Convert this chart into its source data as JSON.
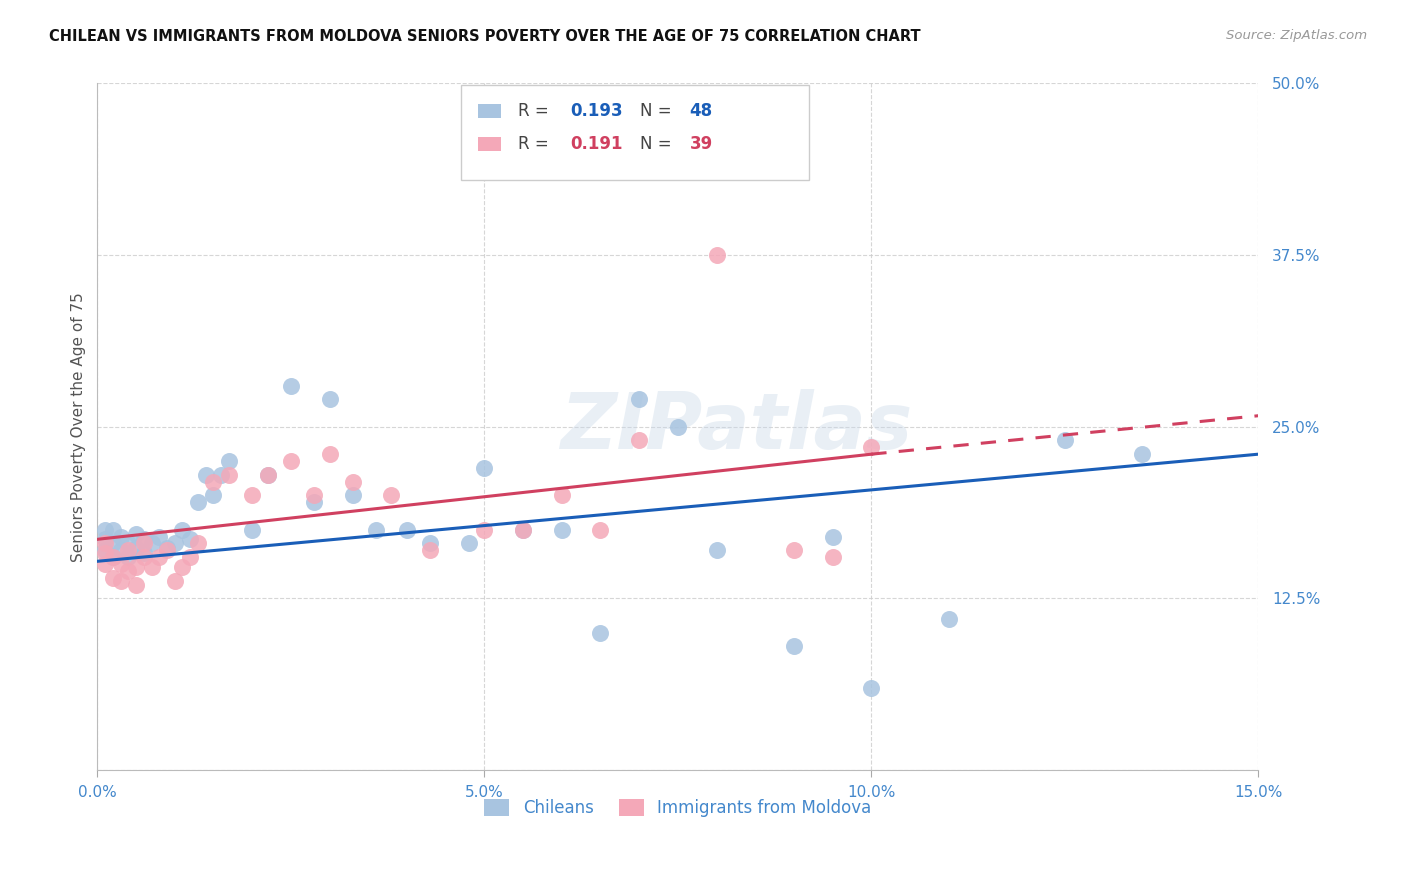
{
  "title": "CHILEAN VS IMMIGRANTS FROM MOLDOVA SENIORS POVERTY OVER THE AGE OF 75 CORRELATION CHART",
  "source": "Source: ZipAtlas.com",
  "ylabel": "Seniors Poverty Over the Age of 75",
  "xlim": [
    0.0,
    0.15
  ],
  "ylim": [
    0.0,
    0.5
  ],
  "xticks": [
    0.0,
    0.05,
    0.1,
    0.15
  ],
  "xticklabels": [
    "0.0%",
    "5.0%",
    "10.0%",
    "15.0%"
  ],
  "yticks": [
    0.0,
    0.125,
    0.25,
    0.375,
    0.5
  ],
  "yticklabels": [
    "",
    "12.5%",
    "25.0%",
    "37.5%",
    "50.0%"
  ],
  "chilean_R": "0.193",
  "chilean_N": "48",
  "moldova_R": "0.191",
  "moldova_N": "39",
  "chilean_color": "#a8c4e0",
  "moldova_color": "#f4a8b8",
  "trendline_chilean_color": "#1a5eb8",
  "trendline_moldova_color": "#d04060",
  "chilean_x": [
    0.001,
    0.001,
    0.001,
    0.002,
    0.002,
    0.002,
    0.003,
    0.003,
    0.004,
    0.004,
    0.005,
    0.005,
    0.006,
    0.006,
    0.007,
    0.008,
    0.009,
    0.01,
    0.011,
    0.012,
    0.013,
    0.014,
    0.015,
    0.016,
    0.017,
    0.02,
    0.022,
    0.025,
    0.028,
    0.03,
    0.033,
    0.036,
    0.04,
    0.043,
    0.048,
    0.05,
    0.055,
    0.06,
    0.065,
    0.07,
    0.075,
    0.08,
    0.09,
    0.095,
    0.1,
    0.11,
    0.125,
    0.135
  ],
  "chilean_y": [
    0.16,
    0.168,
    0.175,
    0.155,
    0.165,
    0.175,
    0.16,
    0.17,
    0.155,
    0.165,
    0.162,
    0.172,
    0.158,
    0.168,
    0.165,
    0.17,
    0.162,
    0.165,
    0.175,
    0.168,
    0.195,
    0.215,
    0.2,
    0.215,
    0.225,
    0.175,
    0.215,
    0.28,
    0.195,
    0.27,
    0.2,
    0.175,
    0.175,
    0.165,
    0.165,
    0.22,
    0.175,
    0.175,
    0.1,
    0.27,
    0.25,
    0.16,
    0.09,
    0.17,
    0.06,
    0.11,
    0.24,
    0.23
  ],
  "moldova_x": [
    0.001,
    0.001,
    0.001,
    0.002,
    0.002,
    0.003,
    0.003,
    0.004,
    0.004,
    0.005,
    0.005,
    0.006,
    0.006,
    0.007,
    0.008,
    0.009,
    0.01,
    0.011,
    0.012,
    0.013,
    0.015,
    0.017,
    0.02,
    0.022,
    0.025,
    0.028,
    0.03,
    0.033,
    0.038,
    0.043,
    0.05,
    0.055,
    0.06,
    0.065,
    0.07,
    0.08,
    0.09,
    0.095,
    0.1
  ],
  "moldova_y": [
    0.15,
    0.158,
    0.165,
    0.14,
    0.155,
    0.138,
    0.15,
    0.145,
    0.16,
    0.135,
    0.148,
    0.155,
    0.165,
    0.148,
    0.155,
    0.16,
    0.138,
    0.148,
    0.155,
    0.165,
    0.21,
    0.215,
    0.2,
    0.215,
    0.225,
    0.2,
    0.23,
    0.21,
    0.2,
    0.16,
    0.175,
    0.175,
    0.2,
    0.175,
    0.24,
    0.375,
    0.16,
    0.155,
    0.235
  ],
  "trendline_chilean_x0": 0.0,
  "trendline_chilean_y0": 0.152,
  "trendline_chilean_x1": 0.15,
  "trendline_chilean_y1": 0.23,
  "trendline_moldova_x0": 0.0,
  "trendline_moldova_y0": 0.168,
  "trendline_moldova_x1": 0.1,
  "trendline_moldova_y1": 0.23,
  "trendline_moldova_dash_x0": 0.1,
  "trendline_moldova_dash_y0": 0.23,
  "trendline_moldova_dash_x1": 0.15,
  "trendline_moldova_dash_y1": 0.258,
  "watermark": "ZIPatlas",
  "bg_color": "#ffffff",
  "grid_color": "#cccccc",
  "tick_color": "#4488cc",
  "title_color": "#111111",
  "source_color": "#999999",
  "ylabel_color": "#555555"
}
